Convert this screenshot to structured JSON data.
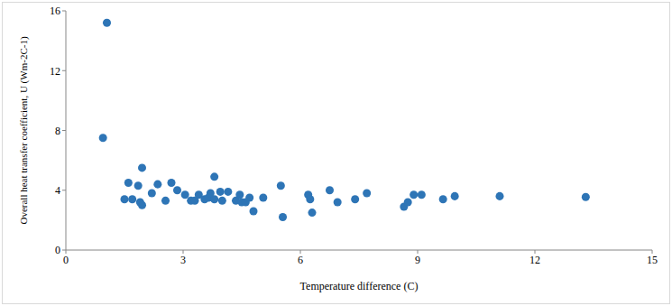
{
  "chart_data": {
    "type": "scatter",
    "x_label": "Temperature difference (C)",
    "y_label": "Overall heat transfer coefficient, U (Wm-2C-1)",
    "x": [
      0.95,
      1.05,
      1.5,
      1.6,
      1.7,
      1.85,
      1.9,
      1.95,
      1.95,
      2.2,
      2.35,
      2.55,
      2.7,
      2.85,
      3.05,
      3.2,
      3.3,
      3.4,
      3.55,
      3.65,
      3.7,
      3.8,
      3.8,
      3.95,
      4.0,
      4.15,
      4.35,
      4.45,
      4.5,
      4.6,
      4.7,
      4.8,
      5.05,
      5.5,
      5.55,
      6.2,
      6.25,
      6.3,
      6.75,
      6.95,
      7.4,
      7.7,
      8.65,
      8.75,
      8.9,
      9.1,
      9.65,
      9.95,
      11.1,
      13.3
    ],
    "values": [
      7.5,
      15.2,
      3.4,
      4.5,
      3.4,
      4.3,
      3.2,
      3.0,
      5.5,
      3.8,
      4.4,
      3.3,
      4.5,
      4.0,
      3.7,
      3.3,
      3.3,
      3.7,
      3.4,
      3.5,
      3.8,
      4.9,
      3.4,
      3.9,
      3.3,
      3.9,
      3.3,
      3.7,
      3.2,
      3.2,
      3.5,
      2.6,
      3.5,
      4.3,
      2.2,
      3.7,
      3.4,
      2.5,
      4.0,
      3.2,
      3.4,
      3.8,
      2.9,
      3.2,
      3.7,
      3.7,
      3.4,
      3.6,
      3.6,
      3.55
    ],
    "color": "#2e75b6",
    "marker": "circle",
    "xlim": [
      0,
      15
    ],
    "xticks": [
      0,
      3,
      6,
      9,
      12,
      15
    ],
    "ylim": [
      0,
      16
    ],
    "yticks": [
      0,
      4,
      8,
      12,
      16
    ],
    "grid": false
  }
}
